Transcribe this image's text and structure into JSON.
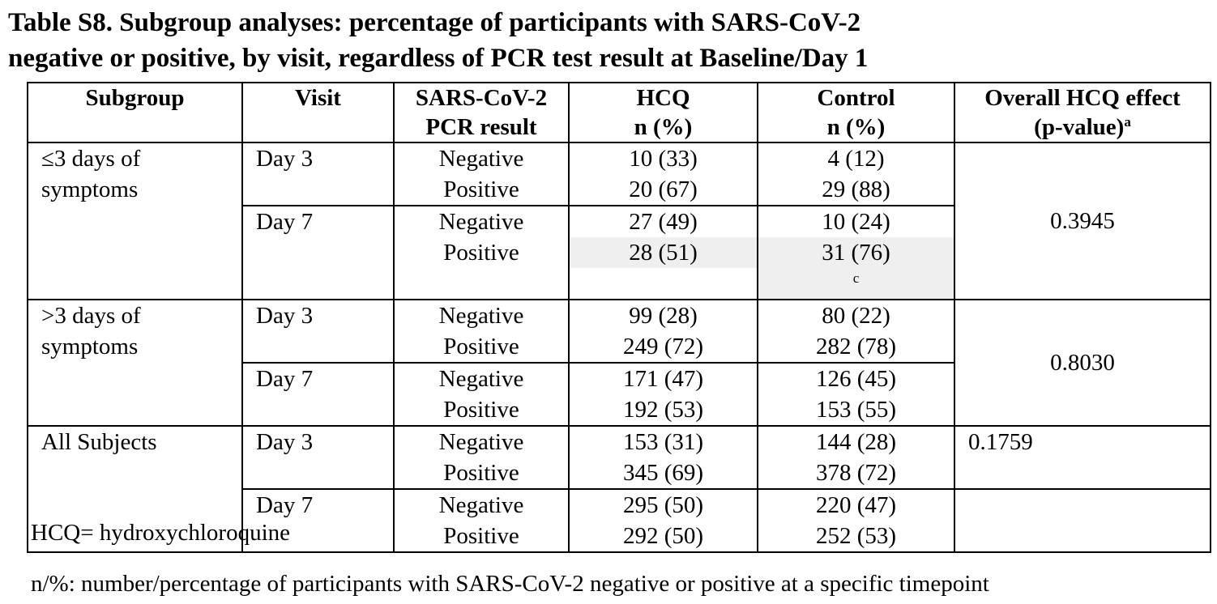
{
  "title": {
    "line1": "Table S8. Subgroup analyses: percentage of participants with SARS-CoV-2",
    "line2": "negative or positive, by visit, regardless of PCR test result at Baseline/Day 1"
  },
  "table": {
    "headers": {
      "subgroup": "Subgroup",
      "visit": "Visit",
      "pcr_line1": "SARS-CoV-2",
      "pcr_line2": "PCR result",
      "hcq_line1": "HCQ",
      "hcq_line2": "n (%)",
      "control_line1": "Control",
      "control_line2": "n (%)",
      "effect_line1": "Overall HCQ effect",
      "effect_line2": "(p-value)",
      "effect_sup": "a"
    },
    "groups": [
      {
        "subgroup_line1": "≤3 days of",
        "subgroup_line2": "symptoms",
        "effect": "0.3945",
        "visits": [
          {
            "visit": "Day 3",
            "neg_label": "Negative",
            "pos_label": "Positive",
            "hcq_neg": "10 (33)",
            "hcq_pos": "20 (67)",
            "ctl_neg": "4 (12)",
            "ctl_pos": "29 (88)"
          },
          {
            "visit": "Day 7",
            "neg_label": "Negative",
            "pos_label": "Positive",
            "hcq_neg": "27 (49)",
            "hcq_pos": "28 (51)",
            "ctl_neg": "10 (24)",
            "ctl_pos": "31 (76)",
            "ctl_pos_sup": "c"
          }
        ]
      },
      {
        "subgroup_line1": ">3 days of",
        "subgroup_line2": "symptoms",
        "effect": "0.8030",
        "visits": [
          {
            "visit": "Day 3",
            "neg_label": "Negative",
            "pos_label": "Positive",
            "hcq_neg": "99 (28)",
            "hcq_pos": "249 (72)",
            "ctl_neg": "80 (22)",
            "ctl_pos": "282 (78)"
          },
          {
            "visit": "Day 7",
            "neg_label": "Negative",
            "pos_label": "Positive",
            "hcq_neg": "171 (47)",
            "hcq_pos": "192 (53)",
            "ctl_neg": "126 (45)",
            "ctl_pos": "153 (55)"
          }
        ]
      },
      {
        "subgroup_line1": "All Subjects",
        "effect": "0.1759",
        "visits": [
          {
            "visit": "Day 3",
            "neg_label": "Negative",
            "pos_label": "Positive",
            "hcq_neg": "153 (31)",
            "hcq_pos": "345 (69)",
            "ctl_neg": "144 (28)",
            "ctl_pos": "378 (72)"
          },
          {
            "visit": "Day 7",
            "neg_label": "Negative",
            "pos_label": "Positive",
            "hcq_neg": "295 (50)",
            "hcq_pos": "292 (50)",
            "ctl_neg": "220 (47)",
            "ctl_pos": "252 (53)"
          }
        ]
      }
    ]
  },
  "footnotes": {
    "abbrev": "HCQ= hydroxychloroquine",
    "n_pct": "n/%: number/percentage of participants with SARS-CoV-2 negative or positive at a specific timepoint"
  }
}
